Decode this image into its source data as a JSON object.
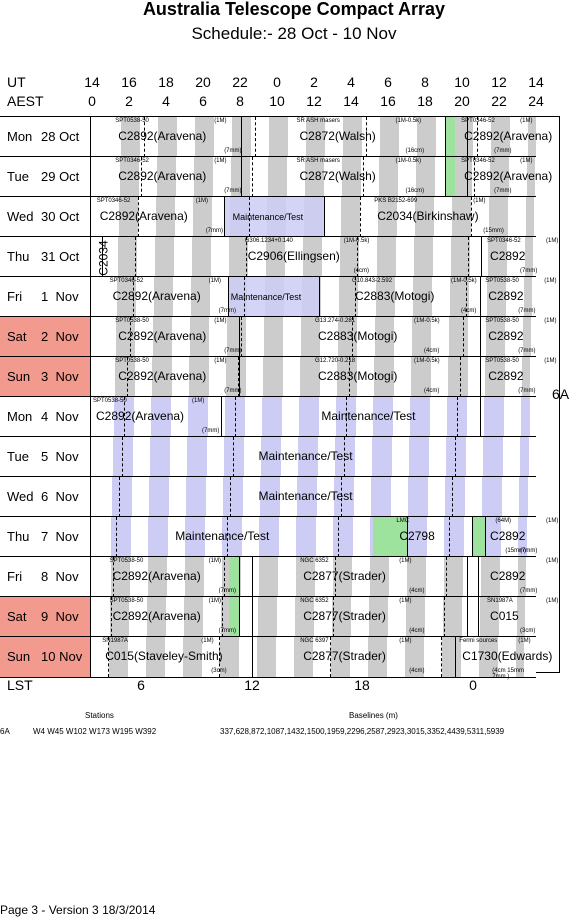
{
  "title": "Australia Telescope Compact Array",
  "subtitle": "Schedule:- 28 Oct - 10 Nov",
  "axis": {
    "ut_label": "UT",
    "aest_label": "AEST",
    "lst_label": "LST",
    "ut": [
      "14",
      "16",
      "18",
      "20",
      "22",
      "0",
      "2",
      "4",
      "6",
      "8",
      "10",
      "12",
      "14"
    ],
    "aest": [
      "0",
      "2",
      "4",
      "6",
      "8",
      "10",
      "12",
      "14",
      "16",
      "18",
      "20",
      "22",
      "24"
    ],
    "lst": [
      "6",
      "12",
      "18",
      "0"
    ]
  },
  "configuration": "6A",
  "days": [
    {
      "dow": "Mon",
      "date": "28 Oct",
      "weekend": false
    },
    {
      "dow": "Tue",
      "date": "29 Oct",
      "weekend": false
    },
    {
      "dow": "Wed",
      "date": "30 Oct",
      "weekend": false
    },
    {
      "dow": "Thu",
      "date": "31 Oct",
      "weekend": false
    },
    {
      "dow": "Fri",
      "date": "1  Nov",
      "weekend": false
    },
    {
      "dow": "Sat",
      "date": "2  Nov",
      "weekend": true
    },
    {
      "dow": "Sun",
      "date": "3  Nov",
      "weekend": true
    },
    {
      "dow": "Mon",
      "date": "4  Nov",
      "weekend": false
    },
    {
      "dow": "Tue",
      "date": "5  Nov",
      "weekend": false
    },
    {
      "dow": "Wed",
      "date": "6  Nov",
      "weekend": false
    },
    {
      "dow": "Thu",
      "date": "7  Nov",
      "weekend": false
    },
    {
      "dow": "Fri",
      "date": "8  Nov",
      "weekend": false
    },
    {
      "dow": "Sat",
      "date": "9  Nov",
      "weekend": true
    },
    {
      "dow": "Sun",
      "date": "10 Nov",
      "weekend": true
    }
  ],
  "projects": {
    "r0": {
      "a": "C2892(Aravena)",
      "a_src": "SPT0538-50",
      "a_cfg": "(1M)",
      "a_band": "(7mm)",
      "b": "C2872(Walsh)",
      "b_src": "SR ASH masers",
      "b_cfg": "(1M-0.5k)",
      "b_band": "(16cm)",
      "c": "C2892(Aravena)",
      "c_src": "SPT0346-52",
      "c_cfg": "(1M)",
      "c_band": "(7mm)"
    },
    "r1": {
      "a": "C2892(Aravena)",
      "a_src": "SPT0346-52",
      "a_cfg": "(1M)",
      "a_band": "(7mm)",
      "b": "C2872(Walsh)",
      "b_src": "SR ASH masers",
      "b_cfg": "(1M-0.5k)",
      "b_band": "(16cm)",
      "c": "C2892(Aravena)",
      "c_src": "SPT0346-52",
      "c_cfg": "(1M)",
      "c_band": "(7mm)"
    },
    "r2": {
      "a": "C2892(Aravena)",
      "a_src": "SPT0346-52",
      "a_cfg": "(1M)",
      "a_band": "(7mm)",
      "m": "Maintenance/Test",
      "b": "C2034(Birkinshaw)",
      "b_src": "PKS B2152-699",
      "b_cfg": "(1M)",
      "b_band": "(15mm)"
    },
    "r3": {
      "v": "C2034",
      "a": "C2906(Ellingsen)",
      "a_src": "G306.1234+0.140",
      "a_cfg": "(1M-0.5k)",
      "a_band": "(4cm)",
      "c": "C2892",
      "c_src": "SPT0346-52",
      "c_cfg": "(1M)",
      "c_band": "(7mm)"
    },
    "r4": {
      "a": "C2892(Aravena)",
      "a_src": "SPT0346-52",
      "a_cfg": "(1M)",
      "a_band": "(7mm)",
      "m": "Maintenance/Test",
      "b": "C2883(Motogi)",
      "b_src": "G10.843-2.592",
      "b_cfg": "(1M-0.5k)",
      "b_band": "(4cm)",
      "c": "C2892",
      "c_src": "SPT0538-50",
      "c_cfg": "(1M)",
      "c_band": "(7mm)"
    },
    "r5": {
      "a": "C2892(Aravena)",
      "a_src": "SPT0538-50",
      "a_cfg": "(1M)",
      "a_band": "(7mm)",
      "b": "C2883(Motogi)",
      "b_src": "G13.274-0.281",
      "b_cfg": "(1M-0.5k)",
      "b_band": "(4cm)",
      "c": "C2892",
      "c_src": "SPT0538-50",
      "c_cfg": "(1M)",
      "c_band": "(7mm)"
    },
    "r6": {
      "a": "C2892(Aravena)",
      "a_src": "SPT0538-50",
      "a_cfg": "(1M)",
      "a_band": "(7mm)",
      "b": "C2883(Motogi)",
      "b_src": "G12.720-0.218",
      "b_cfg": "(1M-0.5k)",
      "b_band": "(4cm)",
      "c": "C2892",
      "c_src": "SPT0538-50",
      "c_cfg": "(1M)",
      "c_band": "(7mm)"
    },
    "r7": {
      "a": "C2892(Aravena)",
      "a_src": "SPT0538-50",
      "a_cfg": "(1M)",
      "a_band": "(7mm)",
      "m": "Maintenance/Test"
    },
    "r8": {
      "m": "Maintenance/Test"
    },
    "r9": {
      "m": "Maintenance/Test"
    },
    "r10": {
      "m": "Maintenance/Test",
      "b": "C2798",
      "b_src": "LMC",
      "b_cfg": "(64M)",
      "b_band": "(15mm)",
      "c": "C2892",
      "c_cfg": "(1M)",
      "c_band": "(7mm)"
    },
    "r11": {
      "a": "C2892(Aravena)",
      "a_src": "SPT0538-50",
      "a_cfg": "(1M)",
      "a_band": "(7mm)",
      "b": "C2877(Strader)",
      "b_src": "NGC 6352",
      "b_cfg": "(1M)",
      "b_band": "(4cm)",
      "c": "C2892",
      "c_cfg": "(1M)",
      "c_band": "(7mm)"
    },
    "r12": {
      "a": "C2892(Aravena)",
      "a_src": "SPT0538-50",
      "a_cfg": "(1M)",
      "a_band": "(7mm)",
      "b": "C2877(Strader)",
      "b_src": "NGC 6352",
      "b_cfg": "(1M)",
      "b_band": "(4cm)",
      "c": "C015",
      "c_src": "SN1987A",
      "c_cfg": "(1M)",
      "c_band": "(3cm)"
    },
    "r13": {
      "a": "C015(Staveley-Smith)",
      "a_src": "SN1987A",
      "a_cfg": "(1M)",
      "a_band": "(3cm)",
      "b": "C2877(Strader)",
      "b_src": "NGC 6397",
      "b_cfg": "(1M)",
      "b_band": "(4cm)",
      "c": "C1730(Edwards)",
      "c_src": "Fermi sources",
      "c_cfg": "(1M)",
      "c_band": "(4cm 15mm 7mm )"
    }
  },
  "stations": {
    "heading": "Stations",
    "config": "6A",
    "list": "W4 W45 W102 W173 W195 W392"
  },
  "baselines": {
    "heading": "Baselines (m)",
    "list": "337,628,872,1087,1432,1500,1959,2296,2587,2923,3015,3352,4439,5311,5939"
  },
  "footer": "Page 3 - Version 3  18/3/2014"
}
